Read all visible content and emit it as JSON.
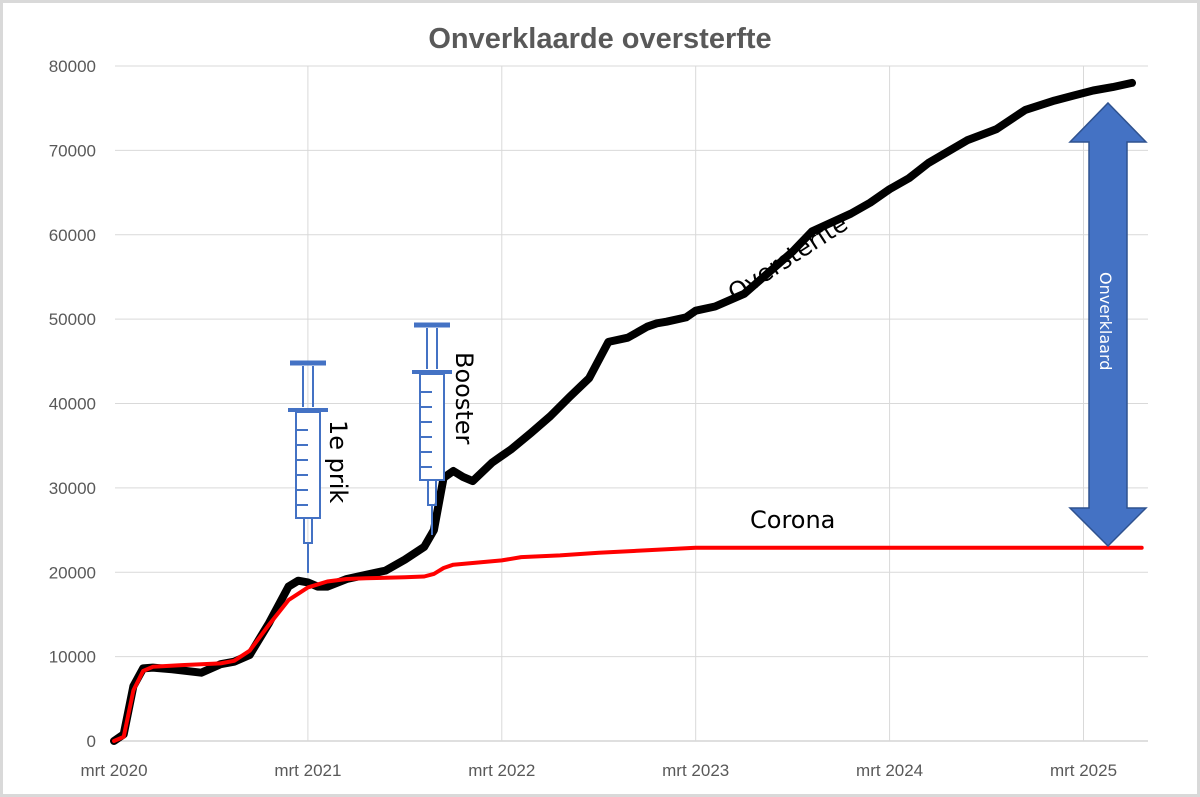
{
  "chart_data": {
    "type": "line",
    "title": "Onverklaarde oversterfte",
    "xlabel": "",
    "ylabel": "",
    "x_tick_labels": [
      "mrt 2020",
      "mrt 2021",
      "mrt 2022",
      "mrt 2023",
      "mrt 2024",
      "mrt 2025"
    ],
    "y_tick_labels": [
      "0",
      "10000",
      "20000",
      "30000",
      "40000",
      "50000",
      "60000",
      "70000",
      "80000"
    ],
    "ylim": [
      0,
      80000
    ],
    "xlim_years": [
      0,
      5.3
    ],
    "grid": true,
    "legend": "none",
    "series": [
      {
        "name": "Oversterfte",
        "color": "#000000",
        "x": [
          0,
          0.05,
          0.1,
          0.15,
          0.2,
          0.3,
          0.45,
          0.55,
          0.62,
          0.7,
          0.8,
          0.9,
          0.95,
          1.0,
          1.05,
          1.1,
          1.2,
          1.3,
          1.4,
          1.5,
          1.6,
          1.65,
          1.7,
          1.75,
          1.8,
          1.85,
          1.95,
          2.0,
          2.05,
          2.15,
          2.25,
          2.35,
          2.45,
          2.55,
          2.65,
          2.75,
          2.8,
          2.85,
          2.95,
          3.0,
          3.1,
          3.25,
          3.3,
          3.5,
          3.6,
          3.8,
          3.9,
          4.0,
          4.1,
          4.2,
          4.4,
          4.55,
          4.7,
          4.85,
          4.95,
          5.0,
          5.05,
          5.15,
          5.25
        ],
        "y": [
          0,
          800,
          6500,
          8600,
          8700,
          8500,
          8100,
          9100,
          9400,
          10200,
          14000,
          18300,
          19000,
          18800,
          18300,
          18300,
          19200,
          19700,
          20200,
          21500,
          23000,
          25000,
          31200,
          32000,
          31300,
          30800,
          33000,
          33800,
          34600,
          36500,
          38500,
          40800,
          43000,
          47300,
          47800,
          49100,
          49500,
          49700,
          50200,
          51000,
          51500,
          53000,
          54000,
          58000,
          60400,
          62500,
          63800,
          65400,
          66700,
          68500,
          71200,
          72500,
          74800,
          75900,
          76500,
          76800,
          77100,
          77500,
          78000
        ]
      },
      {
        "name": "Corona",
        "color": "#ff0000",
        "x": [
          0,
          0.05,
          0.1,
          0.15,
          0.2,
          0.35,
          0.55,
          0.62,
          0.7,
          0.8,
          0.9,
          1.0,
          1.1,
          1.2,
          1.3,
          1.5,
          1.6,
          1.65,
          1.7,
          1.75,
          1.85,
          2.0,
          2.1,
          2.3,
          2.5,
          2.75,
          3.0,
          3.1,
          3.5,
          4.0,
          4.5,
          5.0,
          5.3
        ],
        "y": [
          0,
          500,
          6000,
          8300,
          8800,
          9000,
          9200,
          9500,
          10700,
          13800,
          16700,
          18200,
          18900,
          19200,
          19300,
          19400,
          19500,
          19800,
          20500,
          20900,
          21100,
          21400,
          21800,
          22000,
          22300,
          22600,
          22900,
          22900,
          22900,
          22900,
          22900,
          22900,
          22900
        ]
      }
    ],
    "annotations": {
      "oversterfte_label": "Oversterfte",
      "corona_label": "Corona",
      "first_dose_label": "1e prik",
      "booster_label": "Booster",
      "unexplained_label": "Onverklaard"
    }
  }
}
